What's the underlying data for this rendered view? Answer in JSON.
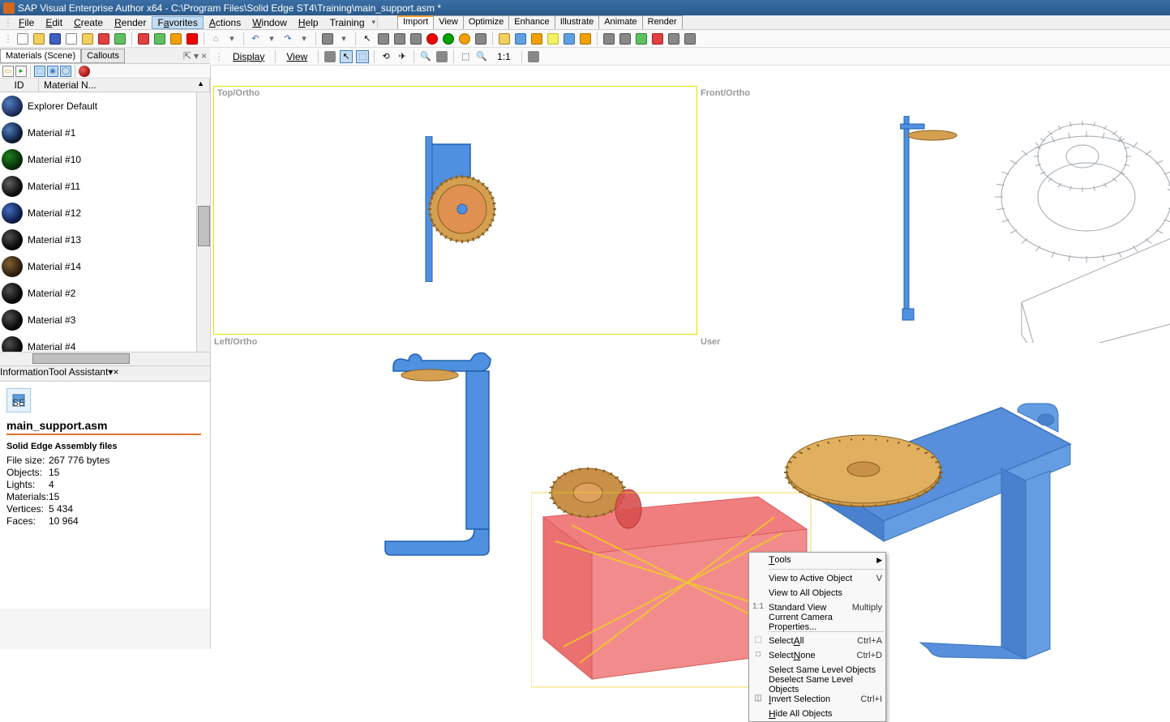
{
  "title": "SAP Visual Enterprise Author x64 - C:\\Program Files\\Solid Edge ST4\\Training\\main_support.asm *",
  "menus": [
    "File",
    "Edit",
    "Create",
    "Render",
    "Favorites",
    "Actions",
    "Window",
    "Help",
    "Training"
  ],
  "menu_selected_idx": 4,
  "menu_underline_pos": [
    0,
    0,
    0,
    0,
    1,
    0,
    0,
    0,
    -1
  ],
  "top_tabs": [
    "Import",
    "View",
    "Optimize",
    "Enhance",
    "Illustrate",
    "Animate",
    "Render"
  ],
  "top_tab_active": 0,
  "toolbar1_icons": [
    {
      "n": "new",
      "c": "#fff",
      "b": "#888"
    },
    {
      "n": "open",
      "c": "#f0d060",
      "b": "#b08020"
    },
    {
      "n": "save",
      "c": "#4060c0",
      "b": "#203080"
    },
    {
      "n": "copy",
      "c": "#fff",
      "b": "#888"
    },
    {
      "n": "paste",
      "c": "#f0d060",
      "b": "#b08020"
    },
    {
      "n": "delete",
      "c": "#e04040",
      "b": "#a02020"
    },
    {
      "n": "edit",
      "c": "#60c060",
      "b": "#308030"
    },
    {
      "n": "sep"
    },
    {
      "n": "cut",
      "c": "#e04040",
      "b": "#a02020"
    },
    {
      "n": "tool1",
      "c": "#60c060",
      "b": "#308030"
    },
    {
      "n": "tool2",
      "c": "#f0a000",
      "b": "#b07000"
    },
    {
      "n": "tool3",
      "c": "#f00000",
      "b": "#a00000"
    },
    {
      "n": "sep"
    },
    {
      "n": "home",
      "c": "#888",
      "b": "#555",
      "txt": "⌂"
    },
    {
      "n": "dd",
      "txt": "▾"
    },
    {
      "n": "sep"
    },
    {
      "n": "undo",
      "txt": "↶",
      "c": "#4060c0"
    },
    {
      "n": "dd",
      "txt": "▾"
    },
    {
      "n": "redo",
      "txt": "↷",
      "c": "#4060c0"
    },
    {
      "n": "dd",
      "txt": "▾"
    },
    {
      "n": "sep"
    },
    {
      "n": "sel",
      "c": "#888",
      "b": "#555"
    },
    {
      "n": "dd",
      "txt": "▾"
    },
    {
      "n": "sep"
    },
    {
      "n": "cursor",
      "txt": "↖",
      "c": "#000"
    },
    {
      "n": "move",
      "c": "#888",
      "b": "#555"
    },
    {
      "n": "rot",
      "c": "#888",
      "b": "#555"
    },
    {
      "n": "scale",
      "c": "#888",
      "b": "#555"
    },
    {
      "n": "sphere1",
      "c": "#f00000",
      "b": "#a00000",
      "r": true
    },
    {
      "n": "sphere2",
      "c": "#00a000",
      "b": "#006000",
      "r": true
    },
    {
      "n": "sphere3",
      "c": "#f0a000",
      "b": "#b07000",
      "r": true
    },
    {
      "n": "align",
      "c": "#888",
      "b": "#555"
    },
    {
      "n": "sep"
    },
    {
      "n": "layers",
      "c": "#f0d060",
      "b": "#b08020"
    },
    {
      "n": "cam1",
      "c": "#60a0e0",
      "b": "#3070b0"
    },
    {
      "n": "cam2",
      "c": "#f0a000",
      "b": "#b07000"
    },
    {
      "n": "lgt1",
      "c": "#f0f060",
      "b": "#c0c030"
    },
    {
      "n": "lgt2",
      "c": "#60a0e0",
      "b": "#3070b0"
    },
    {
      "n": "lgt3",
      "c": "#f0a000",
      "b": "#b07000"
    },
    {
      "n": "sep"
    },
    {
      "n": "cfg",
      "c": "#888",
      "b": "#555"
    },
    {
      "n": "grid",
      "c": "#888",
      "b": "#555"
    },
    {
      "n": "chk",
      "c": "#60c060",
      "b": "#308030"
    },
    {
      "n": "x",
      "c": "#e04040",
      "b": "#a02020"
    },
    {
      "n": "b1",
      "c": "#888",
      "b": "#555"
    },
    {
      "n": "b2",
      "c": "#888",
      "b": "#555"
    }
  ],
  "panel_tabs": [
    "Materials (Scene)",
    "Callouts"
  ],
  "panel_tools": [
    "⇱",
    "▾",
    "×"
  ],
  "mat_cols": {
    "id": "ID",
    "name": "Material N...",
    "sort": "▲"
  },
  "materials": [
    {
      "label": "Explorer Default",
      "hl": "#5080c0",
      "bc": "#203060"
    },
    {
      "label": "Material #1",
      "hl": "#5080c0",
      "bc": "#102040"
    },
    {
      "label": "Material #10",
      "hl": "#208020",
      "bc": "#083008"
    },
    {
      "label": "Material #11",
      "hl": "#606060",
      "bc": "#101010"
    },
    {
      "label": "Material #12",
      "hl": "#4070c0",
      "bc": "#102050"
    },
    {
      "label": "Material #13",
      "hl": "#505050",
      "bc": "#0a0a0a"
    },
    {
      "label": "Material #14",
      "hl": "#806030",
      "bc": "#302010"
    },
    {
      "label": "Material #2",
      "hl": "#505050",
      "bc": "#0a0a0a"
    },
    {
      "label": "Material #3",
      "hl": "#505050",
      "bc": "#0a0a0a"
    },
    {
      "label": "Material #4",
      "hl": "#505050",
      "bc": "#0a0a0a"
    }
  ],
  "info_tabs": [
    "Information",
    "Tool Assistant"
  ],
  "info": {
    "filename": "main_support.asm",
    "filetype": "Solid Edge Assembly files",
    "rows": [
      [
        "File size:",
        "267 776 bytes"
      ],
      [
        "Objects:",
        "15"
      ],
      [
        "Lights:",
        "4"
      ],
      [
        "Materials:",
        "15"
      ],
      [
        "Vertices:",
        "5 434"
      ],
      [
        "Faces:",
        "10 964"
      ]
    ]
  },
  "vp_toolbar": {
    "display": "Display",
    "view": "View",
    "ratio": "1:1"
  },
  "vp_labels": {
    "tl": "Top/Ortho",
    "tr": "Front/Ortho",
    "bl": "Left/Ortho",
    "br": "User"
  },
  "ctx": [
    {
      "t": "Tools",
      "arrow": true,
      "u": 0
    },
    {
      "sep": true
    },
    {
      "t": "View to Active Object",
      "sc": "V"
    },
    {
      "t": "View to All Objects"
    },
    {
      "t": "Standard View",
      "sc": "Multiply",
      "ico": "1:1"
    },
    {
      "t": "Current Camera Properties..."
    },
    {
      "sep": true
    },
    {
      "t": "Select All",
      "sc": "Ctrl+A",
      "ico": "⬚",
      "u": 7
    },
    {
      "t": "Select None",
      "sc": "Ctrl+D",
      "ico": "□",
      "u": 7
    },
    {
      "t": "Select Same Level Objects"
    },
    {
      "t": "Deselect Same Level Objects"
    },
    {
      "t": "Invert Selection",
      "sc": "Ctrl+I",
      "ico": "◫",
      "u": 0
    },
    {
      "t": "Hide All Objects",
      "u": 0
    }
  ],
  "colors": {
    "bracket": "#5090e0",
    "bracket_stroke": "#2060b0",
    "gear": "#d4a050",
    "gear_stroke": "#8a6020",
    "gear_center": "#e09050",
    "redbox": "#ef6868",
    "redbox_stroke": "#d04040",
    "wire": "#a0a8b0"
  }
}
